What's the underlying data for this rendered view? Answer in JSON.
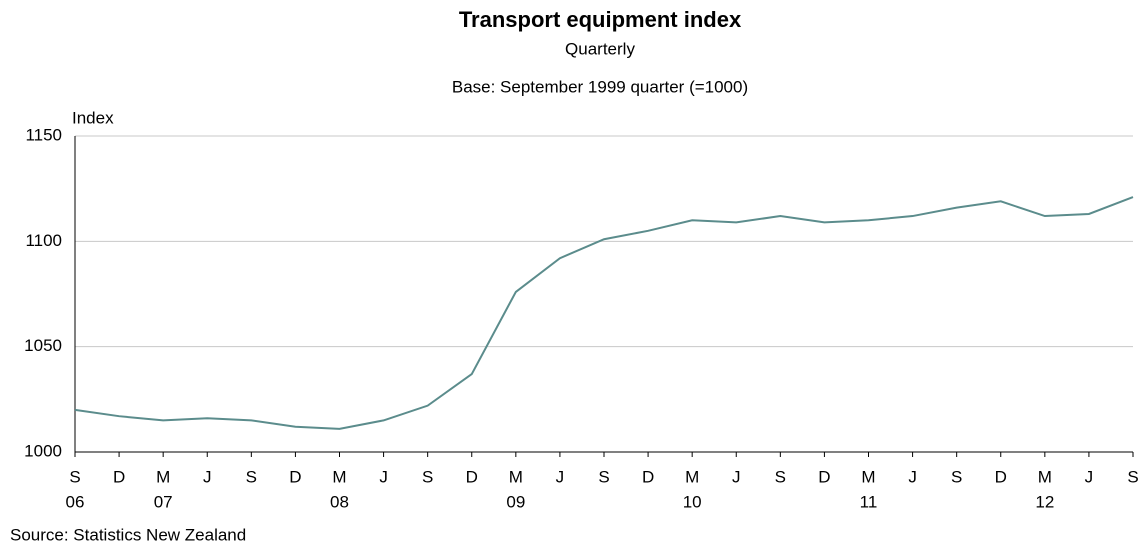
{
  "chart_data": {
    "type": "line",
    "title": "Transport equipment index",
    "subtitle": "Quarterly",
    "note": "Base: September 1999 quarter (=1000)",
    "y_axis_label": "Index",
    "source": "Source: Statistics New Zealand",
    "categories": [
      "S",
      "D",
      "M",
      "J",
      "S",
      "D",
      "M",
      "J",
      "S",
      "D",
      "M",
      "J",
      "S",
      "D",
      "M",
      "J",
      "S",
      "D",
      "M",
      "J",
      "S",
      "D",
      "M",
      "J",
      "S"
    ],
    "year_labels": [
      "06",
      null,
      "07",
      null,
      null,
      null,
      "08",
      null,
      null,
      null,
      "09",
      null,
      null,
      null,
      "10",
      null,
      null,
      null,
      "11",
      null,
      null,
      null,
      "12",
      null,
      null
    ],
    "series": [
      {
        "name": "Transport equipment index",
        "color": "#5b8c8c",
        "values": [
          1020,
          1017,
          1015,
          1016,
          1015,
          1012,
          1011,
          1015,
          1022,
          1037,
          1076,
          1092,
          1101,
          1105,
          1110,
          1109,
          1112,
          1109,
          1110,
          1112,
          1116,
          1119,
          1112,
          1113,
          1121
        ]
      }
    ],
    "ylim": [
      1000,
      1150
    ],
    "yticks": [
      1000,
      1050,
      1100,
      1150
    ],
    "grid": true
  }
}
